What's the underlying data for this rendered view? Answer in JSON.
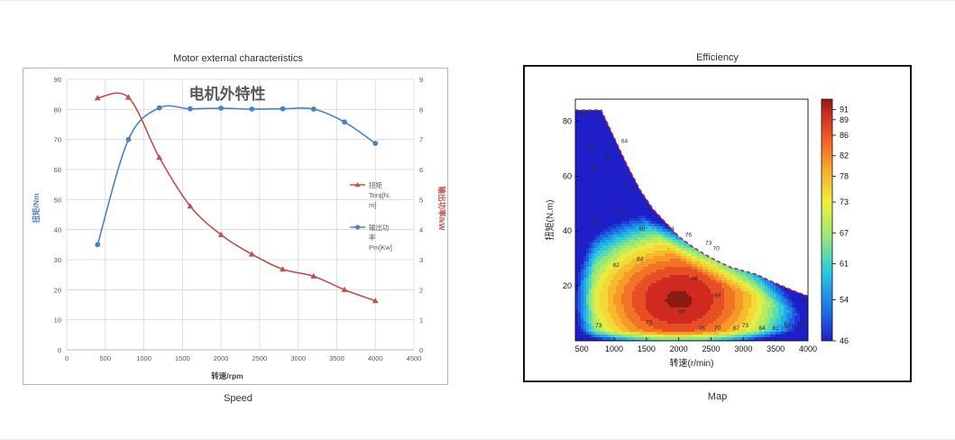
{
  "left_panel": {
    "title": "Motor external characteristics",
    "caption": "Speed"
  },
  "right_panel": {
    "title": "Efficiency",
    "caption": "Map"
  },
  "chart_data": [
    {
      "type": "line",
      "title": "电机外特性",
      "xlabel": "转速/rpm",
      "ylabel": "扭矩/Nm",
      "y2label": "输出功率/kW",
      "xlim": [
        0,
        4500
      ],
      "ylim": [
        0,
        90
      ],
      "y2lim": [
        0,
        9
      ],
      "xticks": [
        "0",
        "500",
        "1000",
        "1500",
        "2000",
        "2500",
        "3000",
        "3500",
        "4000",
        "4500"
      ],
      "yticks": [
        "0",
        "10",
        "20",
        "30",
        "40",
        "50",
        "60",
        "70",
        "80",
        "90"
      ],
      "y2ticks": [
        "0",
        "1",
        "2",
        "3",
        "4",
        "5",
        "6",
        "7",
        "8",
        "9"
      ],
      "grid": true,
      "legend_position": "right",
      "series": [
        {
          "name": "扭矩Torq[N.m]",
          "legend_lines": [
            "扭矩",
            "Torq[N.",
            "m]"
          ],
          "axis": "left",
          "color": "#c0504d",
          "marker": "triangle",
          "x": [
            400,
            800,
            1200,
            1600,
            2000,
            2400,
            2800,
            3200,
            3600,
            4000
          ],
          "y": [
            83.8,
            84,
            64,
            47.8,
            38.3,
            31.8,
            26.8,
            24.5,
            20,
            16.3
          ]
        },
        {
          "name": "输出功率Pm[Kw]",
          "legend_lines": [
            "输出功",
            "率",
            "Pm[Kw]"
          ],
          "axis": "right",
          "color": "#4f81bd",
          "marker": "circle",
          "x": [
            400,
            800,
            1200,
            1600,
            2000,
            2400,
            2800,
            3200,
            3600,
            4000
          ],
          "y": [
            3.5,
            7.0,
            8.05,
            8.02,
            8.04,
            8.01,
            8.02,
            8.01,
            7.58,
            6.87
          ]
        }
      ]
    },
    {
      "type": "heatmap",
      "xlabel": "转速(r/min)",
      "ylabel": "扭矩(N.m)",
      "xlim": [
        400,
        4000
      ],
      "ylim": [
        0,
        88
      ],
      "xticks": [
        "500",
        "1000",
        "1500",
        "2000",
        "2500",
        "3000",
        "3500",
        "4000"
      ],
      "yticks": [
        "20",
        "40",
        "60",
        "80"
      ],
      "colorbar_ticks": [
        "46",
        "54",
        "61",
        "67",
        "73",
        "78",
        "82",
        "86",
        "89",
        "91"
      ],
      "colorbar_range": [
        46,
        93
      ],
      "boundary": {
        "x": [
          400,
          800,
          1000,
          1200,
          1400,
          1600,
          1800,
          2000,
          2200,
          2400,
          2600,
          2800,
          3000,
          3200,
          3400,
          3600,
          3800,
          4000
        ],
        "y": [
          84,
          84,
          74,
          64,
          55,
          48,
          43,
          38,
          34.5,
          31.5,
          29,
          26.8,
          25.5,
          24.2,
          22,
          20,
          18,
          16.3
        ]
      },
      "peak": {
        "x": 2000,
        "y": 15,
        "value": 92
      },
      "contour_labels": [
        {
          "text": "88",
          "x": 2600,
          "y": 16
        },
        {
          "text": "89",
          "x": 2050,
          "y": 10
        },
        {
          "text": "86",
          "x": 2250,
          "y": 22
        },
        {
          "text": "84",
          "x": 1400,
          "y": 29
        },
        {
          "text": "82",
          "x": 1030,
          "y": 27
        },
        {
          "text": "80",
          "x": 1430,
          "y": 40
        },
        {
          "text": "73",
          "x": 1060,
          "y": 46
        },
        {
          "text": "70",
          "x": 1250,
          "y": 55
        },
        {
          "text": "76",
          "x": 2150,
          "y": 38
        },
        {
          "text": "73",
          "x": 2460,
          "y": 35
        },
        {
          "text": "70",
          "x": 2580,
          "y": 33
        },
        {
          "text": "78",
          "x": 1880,
          "y": 40
        },
        {
          "text": "64",
          "x": 1160,
          "y": 72
        },
        {
          "text": "61",
          "x": 900,
          "y": 66
        },
        {
          "text": "61",
          "x": 650,
          "y": 70
        },
        {
          "text": "61",
          "x": 680,
          "y": 62
        },
        {
          "text": "73",
          "x": 1540,
          "y": 6
        },
        {
          "text": "76",
          "x": 2360,
          "y": 4
        },
        {
          "text": "70",
          "x": 2600,
          "y": 4
        },
        {
          "text": "67",
          "x": 2890,
          "y": 4
        },
        {
          "text": "73",
          "x": 3030,
          "y": 5
        },
        {
          "text": "64",
          "x": 3290,
          "y": 4
        },
        {
          "text": "61",
          "x": 3500,
          "y": 4
        },
        {
          "text": "58",
          "x": 3680,
          "y": 5
        },
        {
          "text": "54",
          "x": 3900,
          "y": 5
        },
        {
          "text": "73",
          "x": 760,
          "y": 5
        },
        {
          "text": "73",
          "x": 3890,
          "y": 14
        },
        {
          "text": "42",
          "x": 680,
          "y": 42
        },
        {
          "text": "56",
          "x": 540,
          "y": 82
        }
      ]
    }
  ]
}
